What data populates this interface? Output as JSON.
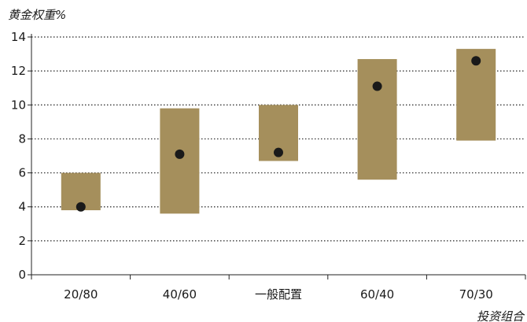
{
  "chart_data": {
    "type": "range-dot",
    "title": "",
    "ylabel": "黄金权重%",
    "xlabel": "投资组合",
    "ylim": [
      0,
      14
    ],
    "yticks": [
      0,
      2,
      4,
      6,
      8,
      10,
      12,
      14
    ],
    "grid": true,
    "categories": [
      "20/80",
      "40/60",
      "一般配置",
      "60/40",
      "70/30"
    ],
    "series": [
      {
        "type": "range",
        "low": [
          3.8,
          3.6,
          6.7,
          5.6,
          7.9
        ],
        "high": [
          6.0,
          9.8,
          10.0,
          12.7,
          13.3
        ]
      },
      {
        "type": "point",
        "values": [
          4.0,
          7.1,
          7.2,
          11.1,
          12.6
        ]
      }
    ],
    "colors": {
      "range": "#a58f5c",
      "point": "#1a1a1a",
      "axis": "#222222"
    }
  }
}
